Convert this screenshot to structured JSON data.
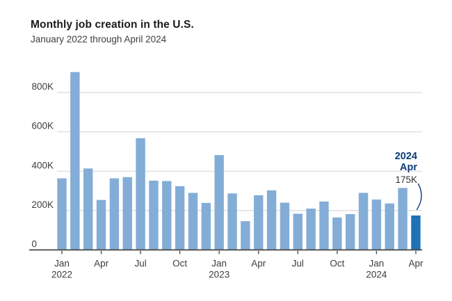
{
  "header": {
    "title": "Monthly job creation in the U.S.",
    "subtitle": "January 2022 through April 2024"
  },
  "annotation": {
    "year": "2024",
    "month": "Apr",
    "value": "175K"
  },
  "colors": {
    "bar": "#83add7",
    "bar_highlight": "#1e72b5",
    "annotation_text": "#0d3c78",
    "grid": "#d8d8d8",
    "axis": "#4a4a4a",
    "text": "#3d3d3d",
    "title_text": "#1a1a1a"
  },
  "chart_data": {
    "type": "bar",
    "title": "Monthly job creation in the U.S.",
    "subtitle": "January 2022 through April 2024",
    "units": "thousands of jobs (K)",
    "categories": [
      "Jan 2022",
      "Feb 2022",
      "Mar 2022",
      "Apr 2022",
      "May 2022",
      "Jun 2022",
      "Jul 2022",
      "Aug 2022",
      "Sep 2022",
      "Oct 2022",
      "Nov 2022",
      "Dec 2022",
      "Jan 2023",
      "Feb 2023",
      "Mar 2023",
      "Apr 2023",
      "May 2023",
      "Jun 2023",
      "Jul 2023",
      "Aug 2023",
      "Sep 2023",
      "Oct 2023",
      "Nov 2023",
      "Dec 2023",
      "Jan 2024",
      "Feb 2024",
      "Mar 2024",
      "Apr 2024"
    ],
    "values": [
      364,
      904,
      414,
      254,
      364,
      370,
      568,
      352,
      350,
      324,
      290,
      239,
      482,
      287,
      146,
      278,
      303,
      240,
      184,
      210,
      246,
      165,
      182,
      290,
      256,
      236,
      315,
      175
    ],
    "highlight_index": 27,
    "highlight_label": "Apr 2024",
    "highlight_value": "175K",
    "yticks": [
      "0",
      "200K",
      "400K",
      "600K",
      "800K"
    ],
    "ytick_values": [
      0,
      200,
      400,
      600,
      800
    ],
    "ylim": [
      0,
      950
    ],
    "xticks": [
      {
        "index": 0,
        "label": "Jan",
        "year": "2022"
      },
      {
        "index": 3,
        "label": "Apr"
      },
      {
        "index": 6,
        "label": "Jul"
      },
      {
        "index": 9,
        "label": "Oct"
      },
      {
        "index": 12,
        "label": "Jan",
        "year": "2023"
      },
      {
        "index": 15,
        "label": "Apr"
      },
      {
        "index": 18,
        "label": "Jul"
      },
      {
        "index": 21,
        "label": "Oct"
      },
      {
        "index": 24,
        "label": "Jan",
        "year": "2024"
      },
      {
        "index": 27,
        "label": "Apr"
      }
    ],
    "grid": true,
    "legend": false,
    "xlabel": "",
    "ylabel": ""
  }
}
